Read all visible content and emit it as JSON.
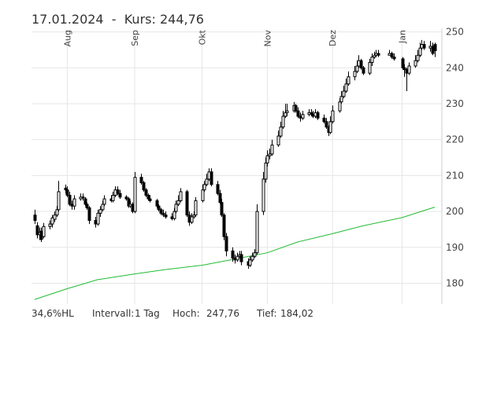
{
  "header": {
    "date": "17.01.2024",
    "separator": "-",
    "price_label": "Kurs:",
    "price_value": "244,76"
  },
  "footer": {
    "hl": "34,6%HL",
    "interval_label": "Intervall:",
    "interval_value": "1 Tag",
    "high_label": "Hoch:",
    "high_value": "247,76",
    "low_label": "Tief:",
    "low_value": "184,02"
  },
  "chart_data": {
    "type": "candlestick",
    "title": "",
    "xlabel": "",
    "ylabel": "",
    "ylim": [
      173,
      251
    ],
    "y_ticks": [
      180,
      190,
      200,
      210,
      220,
      230,
      240,
      250
    ],
    "x_month_labels": [
      {
        "label": "Aug",
        "date": "2023-08-01"
      },
      {
        "label": "Sep",
        "date": "2023-09-01"
      },
      {
        "label": "Okt",
        "date": "2023-10-02"
      },
      {
        "label": "Nov",
        "date": "2023-11-01"
      },
      {
        "label": "Dez",
        "date": "2023-12-01"
      },
      {
        "label": "Jan",
        "date": "2024-01-02"
      }
    ],
    "x_range": [
      "2023-07-17",
      "2024-01-17"
    ],
    "grid": true,
    "series": [
      {
        "type": "candlestick",
        "x": [
          "2023-07-17",
          "2023-07-18",
          "2023-07-19",
          "2023-07-20",
          "2023-07-21",
          "2023-07-24",
          "2023-07-25",
          "2023-07-26",
          "2023-07-27",
          "2023-07-28",
          "2023-07-31",
          "2023-08-01",
          "2023-08-02",
          "2023-08-03",
          "2023-08-04",
          "2023-08-07",
          "2023-08-08",
          "2023-08-09",
          "2023-08-10",
          "2023-08-11",
          "2023-08-14",
          "2023-08-15",
          "2023-08-16",
          "2023-08-17",
          "2023-08-18",
          "2023-08-21",
          "2023-08-22",
          "2023-08-23",
          "2023-08-24",
          "2023-08-25",
          "2023-08-28",
          "2023-08-29",
          "2023-08-30",
          "2023-08-31",
          "2023-09-01",
          "2023-09-04",
          "2023-09-05",
          "2023-09-06",
          "2023-09-07",
          "2023-09-08",
          "2023-09-11",
          "2023-09-12",
          "2023-09-13",
          "2023-09-14",
          "2023-09-15",
          "2023-09-18",
          "2023-09-19",
          "2023-09-20",
          "2023-09-21",
          "2023-09-22",
          "2023-09-25",
          "2023-09-26",
          "2023-09-27",
          "2023-09-28",
          "2023-09-29",
          "2023-10-02",
          "2023-10-03",
          "2023-10-04",
          "2023-10-05",
          "2023-10-06",
          "2023-10-09",
          "2023-10-10",
          "2023-10-11",
          "2023-10-12",
          "2023-10-13",
          "2023-10-16",
          "2023-10-17",
          "2023-10-18",
          "2023-10-19",
          "2023-10-20",
          "2023-10-23",
          "2023-10-24",
          "2023-10-25",
          "2023-10-26",
          "2023-10-27",
          "2023-10-30",
          "2023-10-31",
          "2023-11-01",
          "2023-11-02",
          "2023-11-03",
          "2023-11-06",
          "2023-11-07",
          "2023-11-08",
          "2023-11-09",
          "2023-11-10",
          "2023-11-13",
          "2023-11-14",
          "2023-11-15",
          "2023-11-16",
          "2023-11-17",
          "2023-11-20",
          "2023-11-21",
          "2023-11-22",
          "2023-11-23",
          "2023-11-24",
          "2023-11-27",
          "2023-11-28",
          "2023-11-29",
          "2023-11-30",
          "2023-12-01",
          "2023-12-04",
          "2023-12-05",
          "2023-12-06",
          "2023-12-07",
          "2023-12-08",
          "2023-12-11",
          "2023-12-12",
          "2023-12-13",
          "2023-12-14",
          "2023-12-15",
          "2023-12-18",
          "2023-12-19",
          "2023-12-20",
          "2023-12-21",
          "2023-12-22",
          "2023-12-27",
          "2023-12-28",
          "2023-12-29",
          "2024-01-02",
          "2024-01-03",
          "2024-01-04",
          "2024-01-05",
          "2024-01-08",
          "2024-01-09",
          "2024-01-10",
          "2024-01-11",
          "2024-01-12",
          "2024-01-15",
          "2024-01-16",
          "2024-01-17"
        ],
        "close": [
          197.5,
          193.5,
          194.2,
          192.2,
          195.8,
          196.5,
          198.2,
          199.0,
          200.5,
          205.5,
          206.0,
          204.5,
          202.0,
          201.5,
          203.5,
          204.0,
          203.8,
          202.0,
          201.0,
          197.5,
          196.5,
          199.5,
          200.5,
          202.0,
          203.5,
          203.0,
          204.5,
          206.0,
          205.0,
          204.0,
          203.5,
          201.5,
          202.0,
          200.0,
          209.5,
          208.0,
          206.0,
          204.5,
          203.5,
          203.0,
          201.5,
          200.5,
          199.5,
          199.0,
          198.5,
          198.0,
          200.0,
          202.0,
          203.0,
          205.5,
          199.0,
          197.0,
          198.5,
          199.0,
          203.0,
          206.0,
          207.5,
          209.0,
          211.0,
          207.5,
          205.0,
          202.5,
          199.0,
          193.0,
          189.0,
          187.0,
          186.5,
          187.5,
          188.0,
          186.0,
          185.0,
          186.5,
          187.5,
          188.5,
          200.0,
          209.0,
          213.5,
          215.5,
          216.0,
          218.5,
          221.0,
          223.5,
          226.5,
          227.5,
          228.0,
          229.5,
          228.0,
          226.5,
          226.0,
          227.0,
          227.5,
          227.0,
          226.5,
          227.5,
          226.0,
          225.0,
          223.5,
          222.0,
          225.0,
          228.0,
          230.5,
          232.0,
          233.5,
          235.5,
          237.5,
          239.0,
          240.5,
          242.0,
          240.0,
          238.5,
          241.5,
          243.0,
          243.5,
          244.0,
          243.5,
          244.0,
          243.0,
          242.5,
          240.0,
          239.5,
          238.5,
          240.5,
          242.0,
          243.5,
          245.5,
          246.5,
          245.5,
          246.0,
          244.0,
          244.76
        ],
        "open": [
          199.0,
          196.0,
          193.5,
          194.5,
          193.0,
          195.8,
          196.5,
          197.8,
          199.0,
          200.5,
          206.5,
          206.0,
          204.5,
          202.0,
          201.5,
          203.5,
          204.0,
          203.5,
          202.0,
          201.0,
          197.5,
          196.5,
          199.5,
          200.5,
          202.0,
          203.5,
          203.0,
          204.5,
          206.0,
          205.0,
          204.0,
          203.5,
          201.5,
          202.0,
          200.0,
          209.5,
          208.0,
          206.0,
          204.5,
          203.5,
          203.0,
          201.5,
          200.5,
          199.5,
          199.0,
          198.5,
          198.0,
          200.0,
          202.0,
          203.0,
          205.5,
          199.0,
          197.0,
          198.5,
          199.0,
          203.0,
          206.0,
          207.5,
          209.0,
          211.0,
          207.5,
          205.0,
          202.5,
          199.0,
          193.0,
          189.0,
          187.0,
          186.5,
          187.5,
          188.0,
          186.0,
          185.0,
          186.5,
          187.5,
          188.5,
          200.0,
          209.0,
          213.5,
          215.5,
          216.0,
          218.5,
          221.0,
          223.5,
          226.5,
          227.5,
          228.0,
          229.5,
          228.0,
          226.5,
          226.0,
          227.0,
          227.5,
          227.0,
          226.5,
          227.5,
          226.0,
          225.0,
          223.5,
          222.0,
          225.0,
          228.0,
          230.5,
          232.0,
          233.5,
          235.5,
          237.5,
          239.0,
          240.5,
          242.0,
          240.0,
          238.5,
          241.5,
          243.0,
          243.5,
          244.0,
          243.5,
          244.0,
          243.0,
          242.5,
          240.0,
          239.5,
          238.5,
          240.5,
          242.0,
          243.5,
          245.5,
          246.5,
          245.5,
          246.0,
          246.5
        ],
        "high": [
          200.5,
          197.0,
          195.5,
          195.5,
          196.8,
          197.5,
          199.0,
          200.0,
          201.5,
          208.5,
          207.5,
          207.0,
          205.5,
          203.0,
          204.5,
          205.0,
          205.0,
          204.0,
          202.5,
          201.5,
          198.5,
          200.5,
          201.5,
          203.0,
          204.5,
          204.5,
          205.5,
          207.0,
          207.0,
          206.0,
          204.5,
          204.0,
          203.0,
          202.5,
          211.0,
          210.5,
          208.5,
          206.5,
          205.0,
          204.5,
          203.5,
          202.0,
          201.0,
          200.5,
          200.0,
          199.5,
          201.0,
          203.0,
          204.5,
          206.5,
          206.0,
          200.0,
          199.5,
          200.0,
          204.0,
          207.5,
          208.5,
          210.5,
          212.0,
          212.0,
          208.5,
          206.0,
          203.5,
          199.5,
          194.0,
          190.0,
          188.0,
          188.5,
          189.0,
          189.0,
          187.0,
          187.5,
          188.5,
          189.5,
          202.0,
          211.0,
          215.0,
          217.0,
          217.5,
          220.0,
          222.5,
          225.0,
          228.0,
          230.0,
          230.0,
          230.5,
          230.0,
          229.0,
          227.5,
          228.0,
          228.5,
          228.5,
          228.0,
          228.5,
          228.0,
          227.0,
          226.0,
          224.0,
          226.5,
          229.5,
          231.5,
          233.5,
          235.0,
          237.0,
          239.0,
          240.5,
          242.0,
          243.5,
          242.5,
          240.5,
          242.5,
          244.0,
          244.5,
          245.0,
          245.0,
          245.0,
          244.5,
          244.0,
          243.0,
          241.0,
          240.0,
          241.5,
          243.5,
          245.0,
          247.0,
          247.76,
          247.5,
          247.5,
          247.0,
          247.0
        ],
        "low": [
          196.5,
          192.5,
          192.0,
          191.5,
          192.5,
          195.0,
          195.5,
          197.0,
          198.5,
          200.0,
          205.0,
          204.0,
          201.5,
          200.5,
          200.5,
          203.0,
          203.0,
          201.5,
          200.5,
          196.5,
          195.5,
          196.0,
          198.5,
          200.0,
          201.5,
          202.5,
          202.5,
          204.0,
          204.5,
          203.5,
          203.0,
          201.0,
          201.0,
          199.5,
          199.5,
          207.5,
          205.5,
          204.0,
          203.0,
          202.5,
          201.0,
          200.0,
          199.0,
          198.5,
          198.0,
          197.5,
          197.5,
          199.5,
          201.5,
          202.5,
          198.5,
          196.0,
          196.5,
          198.0,
          198.5,
          202.5,
          205.5,
          207.0,
          208.5,
          207.0,
          204.5,
          202.0,
          198.5,
          192.0,
          187.5,
          186.0,
          185.5,
          186.0,
          187.0,
          185.0,
          184.02,
          184.5,
          186.0,
          187.0,
          188.0,
          199.0,
          208.0,
          212.5,
          214.5,
          215.5,
          218.0,
          220.5,
          223.0,
          226.0,
          226.5,
          227.5,
          227.5,
          226.0,
          225.0,
          225.5,
          226.5,
          226.5,
          226.0,
          226.0,
          225.5,
          224.5,
          223.0,
          221.0,
          221.5,
          224.5,
          227.5,
          230.0,
          231.5,
          233.0,
          235.0,
          236.5,
          238.5,
          240.0,
          239.5,
          238.0,
          238.0,
          240.5,
          242.5,
          243.0,
          243.0,
          243.5,
          242.5,
          242.0,
          239.5,
          237.5,
          233.5,
          238.0,
          240.0,
          241.5,
          243.0,
          245.0,
          245.0,
          244.5,
          243.5,
          243.0
        ]
      },
      {
        "type": "line",
        "color": "#22bb33",
        "x": [
          "2023-07-17",
          "2023-08-01",
          "2023-08-15",
          "2023-09-01",
          "2023-09-15",
          "2023-10-02",
          "2023-10-16",
          "2023-11-01",
          "2023-11-15",
          "2023-12-01",
          "2023-12-15",
          "2024-01-02",
          "2024-01-17"
        ],
        "values": [
          175.5,
          178.5,
          181.0,
          182.6,
          183.8,
          185.0,
          186.6,
          188.5,
          191.5,
          193.8,
          196.0,
          198.3,
          201.2
        ]
      }
    ]
  },
  "colors": {
    "candle_up": "#ffffff",
    "candle_down": "#000000",
    "candle_stroke": "#000000",
    "average_line": "#22bb33",
    "grid": "#e6e6e6"
  }
}
